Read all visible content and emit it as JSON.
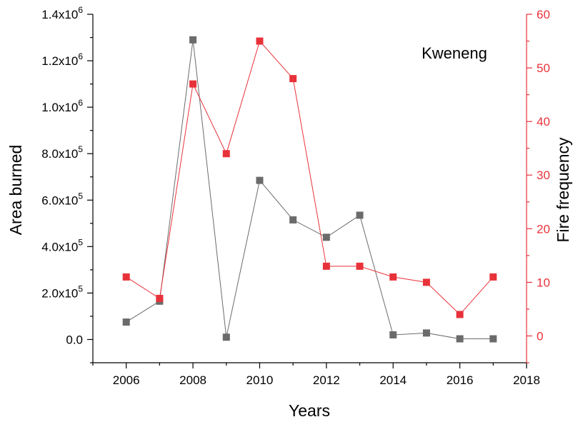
{
  "chart_data": {
    "type": "line",
    "annotation": "Kweneng",
    "xlabel": "Years",
    "ylabel_left": "Area burned",
    "ylabel_right": "Fire frequency",
    "xlim": [
      2005,
      2018
    ],
    "xticks": [
      2006,
      2008,
      2010,
      2012,
      2014,
      2016,
      2018
    ],
    "ylim_left": [
      -100000,
      1400000
    ],
    "yticks_left": [
      {
        "value": 0,
        "mantissa": "0.0",
        "exp": ""
      },
      {
        "value": 200000,
        "mantissa": "2.0x10",
        "exp": "5"
      },
      {
        "value": 400000,
        "mantissa": "4.0x10",
        "exp": "5"
      },
      {
        "value": 600000,
        "mantissa": "6.0x10",
        "exp": "5"
      },
      {
        "value": 800000,
        "mantissa": "8.0x10",
        "exp": "5"
      },
      {
        "value": 1000000,
        "mantissa": "1.0x10",
        "exp": "6"
      },
      {
        "value": 1200000,
        "mantissa": "1.2x10",
        "exp": "6"
      },
      {
        "value": 1400000,
        "mantissa": "1.4x10",
        "exp": "6"
      }
    ],
    "ylim_right": [
      -5,
      60
    ],
    "yticks_right": [
      0,
      10,
      20,
      30,
      40,
      50,
      60
    ],
    "grid": false,
    "series": [
      {
        "axis": "left",
        "color": "#6b6b6b",
        "marker": "square",
        "x": [
          2006,
          2007,
          2008,
          2009,
          2010,
          2011,
          2012,
          2013,
          2014,
          2015,
          2016,
          2017
        ],
        "values": [
          75000,
          165000,
          1290000,
          10000,
          685000,
          515000,
          440000,
          535000,
          20000,
          28000,
          3000,
          3000
        ]
      },
      {
        "axis": "right",
        "color": "#e8323a",
        "marker": "square",
        "x": [
          2006,
          2007,
          2008,
          2009,
          2010,
          2011,
          2012,
          2013,
          2014,
          2015,
          2016,
          2017
        ],
        "values": [
          11,
          7,
          47,
          34,
          55,
          48,
          13,
          13,
          11,
          10,
          4,
          11
        ]
      }
    ]
  }
}
